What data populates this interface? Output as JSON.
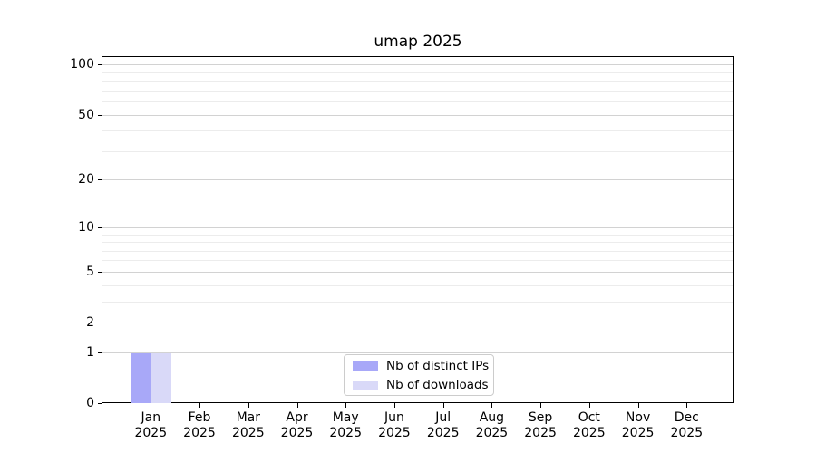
{
  "chart_data": {
    "type": "bar",
    "title": "umap 2025",
    "categories": [
      "Jan\n2025",
      "Feb\n2025",
      "Mar\n2025",
      "Apr\n2025",
      "May\n2025",
      "Jun\n2025",
      "Jul\n2025",
      "Aug\n2025",
      "Sep\n2025",
      "Oct\n2025",
      "Nov\n2025",
      "Dec\n2025"
    ],
    "series": [
      {
        "name": "Nb of distinct IPs",
        "color": "#a8a8f8",
        "values": [
          1,
          0,
          0,
          0,
          0,
          0,
          0,
          0,
          0,
          0,
          0,
          0
        ]
      },
      {
        "name": "Nb of downloads",
        "color": "#d9d9f8",
        "values": [
          1,
          0,
          0,
          0,
          0,
          0,
          0,
          0,
          0,
          0,
          0,
          0
        ]
      }
    ],
    "xlabel": "",
    "ylabel": "",
    "yscale": "log1p",
    "ylim": [
      0,
      111
    ],
    "yticks": [
      0,
      1,
      2,
      5,
      10,
      20,
      50,
      100
    ],
    "yminorticks": [
      3,
      4,
      6,
      7,
      8,
      9,
      30,
      40,
      60,
      70,
      80,
      90
    ],
    "grid": true,
    "legend_position": "lower center, inside plot"
  },
  "colors": {
    "background": "#ffffff",
    "axis": "#000000",
    "text": "#000000",
    "grid_major": "#d2d2d2",
    "grid_minor": "#ececec",
    "legend_border": "#cccccc"
  }
}
